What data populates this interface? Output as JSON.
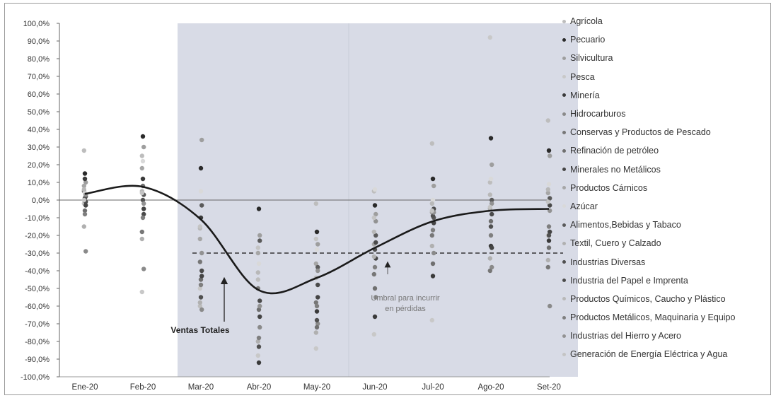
{
  "chart_data": {
    "type": "scatter",
    "categories": [
      "Ene-20",
      "Feb-20",
      "Mar-20",
      "Abr-20",
      "May-20",
      "Jun-20",
      "Jul-20",
      "Ago-20",
      "Set-20"
    ],
    "y_ticks": [
      "100,0%",
      "90,0%",
      "80,0%",
      "70,0%",
      "60,0%",
      "50,0%",
      "40,0%",
      "30,0%",
      "20,0%",
      "10,0%",
      "0,0%",
      "-10,0%",
      "-20,0%",
      "-30,0%",
      "-40,0%",
      "-50,0%",
      "-60,0%",
      "-70,0%",
      "-80,0%",
      "-90,0%",
      "-100,0%"
    ],
    "ylim": [
      -100,
      100
    ],
    "ylabel": "",
    "xlabel": "",
    "grid": false,
    "legend_position": "right",
    "shaded_period": {
      "from": "Mar-20",
      "to": "Set-20"
    },
    "threshold": {
      "value": -30,
      "from": "Mar-20",
      "to": "Set-20"
    },
    "series": [
      {
        "name": "Agrícola",
        "color": "#bdbdbd",
        "values": [
          28,
          25,
          -60,
          -45,
          -2,
          5,
          32,
          10,
          45
        ]
      },
      {
        "name": "Pecuario",
        "color": "#2a2a2a",
        "values": [
          15,
          36,
          18,
          -5,
          -18,
          -3,
          12,
          35,
          28
        ]
      },
      {
        "name": "Silvicultura",
        "color": "#9e9e9e",
        "values": [
          10,
          30,
          34,
          -20,
          -25,
          -8,
          8,
          20,
          25
        ]
      },
      {
        "name": "Pesca",
        "color": "#c8c8c8",
        "values": [
          -2,
          -52,
          -50,
          -88,
          -84,
          -76,
          -68,
          92,
          -20
        ]
      },
      {
        "name": "Minería",
        "color": "#3a3a3a",
        "values": [
          12,
          12,
          -10,
          -92,
          -63,
          -66,
          -43,
          -26,
          -23
        ]
      },
      {
        "name": "Hidrocarburos",
        "color": "#8a8a8a",
        "values": [
          -29,
          -39,
          -62,
          -72,
          -70,
          -55,
          -30,
          -38,
          -60
        ]
      },
      {
        "name": "Conservas y Productos de Pescado",
        "color": "#777777",
        "values": [
          5,
          -18,
          -35,
          -50,
          -58,
          -42,
          -20,
          -40,
          -38
        ]
      },
      {
        "name": "Refinación de petróleo",
        "color": "#6f6f6f",
        "values": [
          -6,
          8,
          -45,
          -62,
          -72,
          -50,
          -36,
          -12,
          -27
        ]
      },
      {
        "name": "Minerales no Metálicos",
        "color": "#444444",
        "values": [
          -3,
          -5,
          -43,
          -66,
          -55,
          -33,
          -13,
          -27,
          -18
        ]
      },
      {
        "name": "Productos Cárnicos",
        "color": "#a6a6a6",
        "values": [
          8,
          18,
          -22,
          -30,
          -36,
          -25,
          -7,
          -5,
          4
        ]
      },
      {
        "name": "Azúcar",
        "color": "#d9d9d9",
        "values": [
          4,
          22,
          5,
          -36,
          -28,
          6,
          0,
          12,
          9
        ]
      },
      {
        "name": "Alimentos,Bebidas y Tabaco",
        "color": "#5a5a5a",
        "values": [
          2,
          3,
          -3,
          -23,
          -38,
          -20,
          -10,
          0,
          1
        ]
      },
      {
        "name": "Textil, Cuero y Calzado",
        "color": "#b0b0b0",
        "values": [
          -15,
          -22,
          -58,
          -80,
          -75,
          -32,
          -26,
          -33,
          -34
        ]
      },
      {
        "name": "Industrias Diversas",
        "color": "#505050",
        "values": [
          1,
          0,
          -55,
          -83,
          -68,
          -28,
          -9,
          -15,
          -20
        ]
      },
      {
        "name": "Industria del Papel e Imprenta",
        "color": "#4a4a4a",
        "values": [
          -1,
          -8,
          -40,
          -57,
          -48,
          -24,
          -5,
          -8,
          -3
        ]
      },
      {
        "name": "Productos Químicos, Caucho y Plástico",
        "color": "#b8b8b8",
        "values": [
          6,
          5,
          -16,
          -41,
          -44,
          -18,
          -2,
          3,
          6
        ]
      },
      {
        "name": "Productos Metálicos, Maquinaria y Equipo",
        "color": "#7f7f7f",
        "values": [
          -8,
          -10,
          -48,
          -78,
          -60,
          -38,
          -17,
          -20,
          -15
        ]
      },
      {
        "name": "Industrias del Hierro y Acero",
        "color": "#929292",
        "values": [
          3,
          -2,
          -30,
          -60,
          -40,
          -12,
          -7,
          -2,
          -6
        ]
      },
      {
        "name": "Generación de Energía Eléctrica y Agua",
        "color": "#c4c4c4",
        "values": [
          0,
          4,
          -15,
          -27,
          -22,
          -10,
          -6,
          -4,
          -1
        ]
      }
    ],
    "total_line": {
      "name": "Ventas Totales",
      "values": [
        3.5,
        7.5,
        -11,
        -51,
        -44,
        -27,
        -12,
        -6,
        -5
      ]
    },
    "annotations": {
      "ventas_label": "Ventas Totales",
      "umbral_line1": "Umbral para incurrir",
      "umbral_line2": "en pérdidas"
    }
  }
}
